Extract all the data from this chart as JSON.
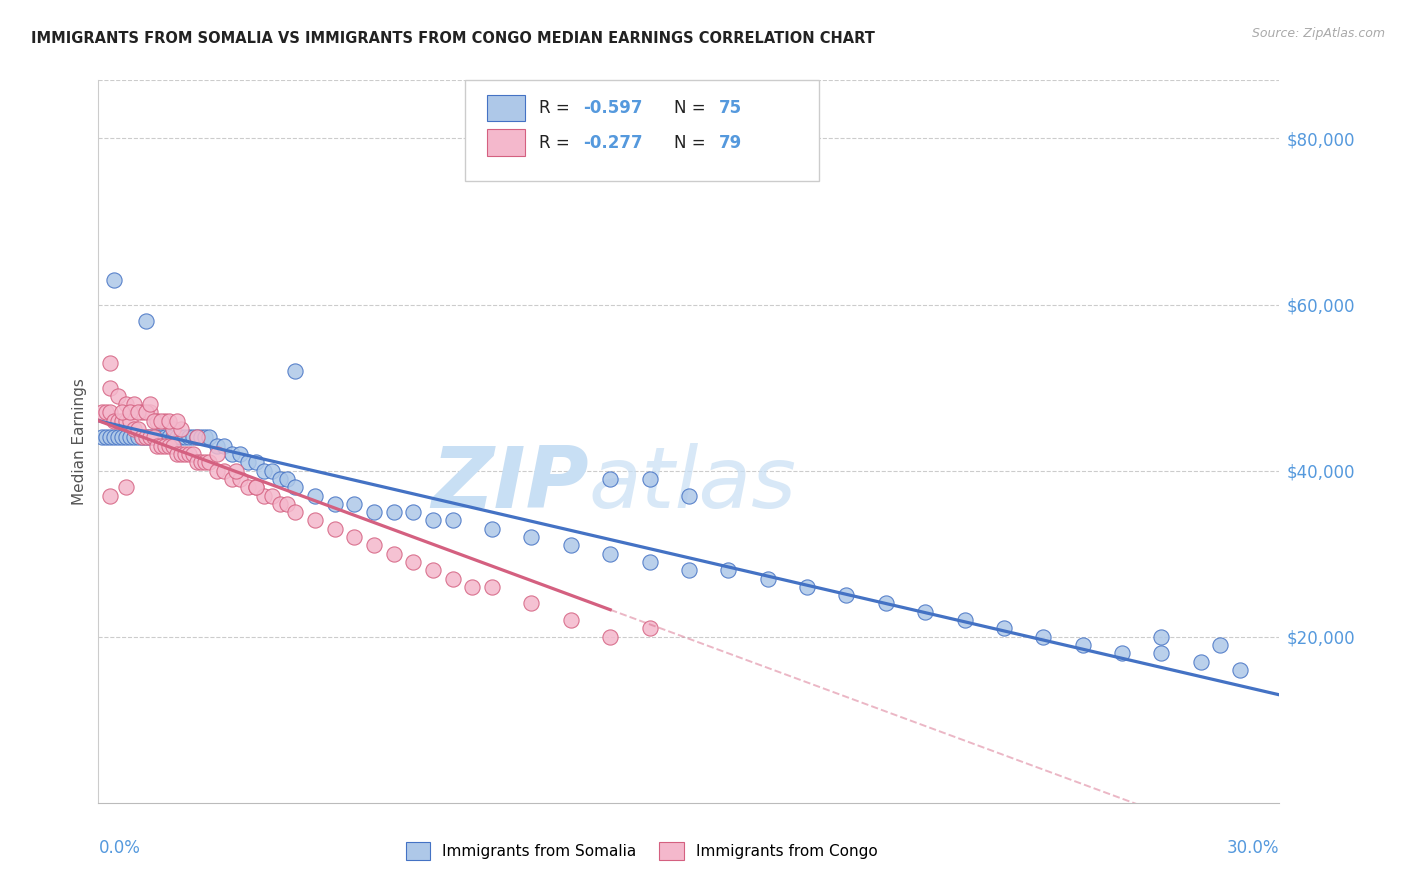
{
  "title": "IMMIGRANTS FROM SOMALIA VS IMMIGRANTS FROM CONGO MEDIAN EARNINGS CORRELATION CHART",
  "source": "Source: ZipAtlas.com",
  "ylabel": "Median Earnings",
  "x_min": 0.0,
  "x_max": 0.3,
  "y_min": 0,
  "y_max": 87000,
  "y_ticks": [
    20000,
    40000,
    60000,
    80000
  ],
  "y_tick_labels": [
    "$20,000",
    "$40,000",
    "$60,000",
    "$80,000"
  ],
  "somalia_face_color": "#aec8e8",
  "somalia_edge_color": "#4472c4",
  "somalia_line_color": "#4472c4",
  "congo_face_color": "#f4b8cc",
  "congo_edge_color": "#d46080",
  "congo_line_color": "#d46080",
  "watermark_color": "#d8eaf8",
  "grid_color": "#cccccc",
  "title_color": "#222222",
  "source_color": "#aaaaaa",
  "axis_label_color": "#5599dd",
  "legend_val_color": "#5599dd",
  "somalia_line_intercept": 46000,
  "somalia_line_slope": -110000,
  "congo_line_intercept": 46000,
  "congo_line_slope": -175000,
  "congo_line_solid_end": 0.13,
  "somalia_x": [
    0.001,
    0.002,
    0.003,
    0.004,
    0.005,
    0.006,
    0.007,
    0.008,
    0.009,
    0.01,
    0.011,
    0.012,
    0.013,
    0.014,
    0.015,
    0.016,
    0.017,
    0.018,
    0.019,
    0.02,
    0.021,
    0.022,
    0.023,
    0.024,
    0.025,
    0.026,
    0.027,
    0.028,
    0.03,
    0.032,
    0.034,
    0.036,
    0.038,
    0.04,
    0.042,
    0.044,
    0.046,
    0.048,
    0.05,
    0.055,
    0.06,
    0.065,
    0.07,
    0.075,
    0.08,
    0.085,
    0.09,
    0.1,
    0.11,
    0.12,
    0.13,
    0.14,
    0.15,
    0.16,
    0.17,
    0.18,
    0.19,
    0.2,
    0.21,
    0.22,
    0.23,
    0.24,
    0.25,
    0.26,
    0.27,
    0.28,
    0.29,
    0.13,
    0.14,
    0.15,
    0.27,
    0.285,
    0.004,
    0.05,
    0.012
  ],
  "somalia_y": [
    44000,
    44000,
    44000,
    44000,
    44000,
    44000,
    44000,
    44000,
    44000,
    44000,
    44000,
    44000,
    44000,
    44000,
    44000,
    44000,
    44000,
    44000,
    44000,
    44000,
    44000,
    44000,
    44000,
    44000,
    44000,
    44000,
    44000,
    44000,
    43000,
    43000,
    42000,
    42000,
    41000,
    41000,
    40000,
    40000,
    39000,
    39000,
    38000,
    37000,
    36000,
    36000,
    35000,
    35000,
    35000,
    34000,
    34000,
    33000,
    32000,
    31000,
    30000,
    29000,
    28000,
    28000,
    27000,
    26000,
    25000,
    24000,
    23000,
    22000,
    21000,
    20000,
    19000,
    18000,
    18000,
    17000,
    16000,
    39000,
    39000,
    37000,
    20000,
    19000,
    63000,
    52000,
    58000
  ],
  "congo_x": [
    0.001,
    0.002,
    0.003,
    0.004,
    0.005,
    0.006,
    0.007,
    0.008,
    0.009,
    0.01,
    0.011,
    0.012,
    0.013,
    0.014,
    0.015,
    0.016,
    0.017,
    0.018,
    0.019,
    0.02,
    0.021,
    0.022,
    0.023,
    0.024,
    0.025,
    0.026,
    0.027,
    0.028,
    0.03,
    0.032,
    0.034,
    0.036,
    0.038,
    0.04,
    0.042,
    0.044,
    0.046,
    0.048,
    0.05,
    0.055,
    0.06,
    0.065,
    0.07,
    0.075,
    0.08,
    0.085,
    0.09,
    0.095,
    0.1,
    0.11,
    0.12,
    0.13,
    0.003,
    0.005,
    0.007,
    0.009,
    0.011,
    0.013,
    0.015,
    0.017,
    0.019,
    0.021,
    0.006,
    0.008,
    0.01,
    0.012,
    0.014,
    0.016,
    0.018,
    0.02,
    0.025,
    0.03,
    0.035,
    0.003,
    0.013,
    0.04,
    0.14,
    0.003,
    0.007
  ],
  "congo_y": [
    47000,
    47000,
    47000,
    46000,
    46000,
    46000,
    46000,
    46000,
    45000,
    45000,
    44000,
    44000,
    44000,
    44000,
    43000,
    43000,
    43000,
    43000,
    43000,
    42000,
    42000,
    42000,
    42000,
    42000,
    41000,
    41000,
    41000,
    41000,
    40000,
    40000,
    39000,
    39000,
    38000,
    38000,
    37000,
    37000,
    36000,
    36000,
    35000,
    34000,
    33000,
    32000,
    31000,
    30000,
    29000,
    28000,
    27000,
    26000,
    26000,
    24000,
    22000,
    20000,
    50000,
    49000,
    48000,
    48000,
    47000,
    47000,
    46000,
    46000,
    45000,
    45000,
    47000,
    47000,
    47000,
    47000,
    46000,
    46000,
    46000,
    46000,
    44000,
    42000,
    40000,
    53000,
    48000,
    38000,
    21000,
    37000,
    38000
  ]
}
